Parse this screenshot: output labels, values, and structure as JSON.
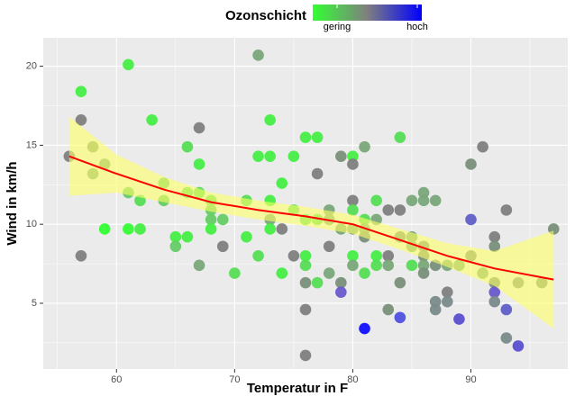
{
  "chart_data": {
    "type": "scatter",
    "x_label": "Temperatur in F",
    "y_label": "Wind in km/h",
    "xlim": [
      53.8,
      98.2
    ],
    "ylim": [
      0.84,
      21.8
    ],
    "xticks": [
      60,
      70,
      80,
      90
    ],
    "yticks": [
      5,
      10,
      15,
      20
    ],
    "grid": true,
    "legend": {
      "title": "Ozonschicht",
      "labels": [
        "gering",
        "hoch"
      ],
      "colors": [
        "#33ff33",
        "#7f7f7f",
        "#0000ff"
      ]
    },
    "series": [
      {
        "x": [
          56,
          57,
          57,
          57,
          58,
          58,
          59,
          59,
          61,
          61,
          61,
          62,
          62,
          63,
          64,
          64,
          65,
          65,
          66,
          66,
          66,
          67,
          67,
          67,
          67,
          68,
          68,
          68,
          68,
          69,
          69,
          70,
          71,
          71,
          72,
          72,
          72,
          73,
          73,
          73,
          73,
          73,
          74,
          74,
          74,
          75,
          75,
          75,
          76,
          76,
          76,
          76,
          76,
          76,
          76,
          77,
          77,
          77,
          77,
          78,
          78,
          78,
          78,
          79,
          79,
          79,
          79,
          80,
          80,
          80,
          80,
          80,
          80,
          80,
          81,
          81,
          81,
          81,
          81,
          81,
          82,
          82,
          82,
          82,
          83,
          83,
          83,
          83,
          84,
          84,
          84,
          84,
          84,
          85,
          85,
          85,
          85,
          86,
          86,
          86,
          86,
          86,
          86,
          87,
          87,
          87,
          87,
          88,
          88,
          88,
          89,
          89,
          90,
          90,
          90,
          91,
          91,
          92,
          92,
          92,
          92,
          92,
          93,
          93,
          93,
          94,
          94,
          96,
          97
        ],
        "values": [
          14.3,
          18.4,
          16.6,
          8.0,
          14.9,
          13.2,
          13.8,
          9.7,
          20.1,
          12.0,
          9.7,
          11.5,
          9.7,
          16.6,
          12.6,
          11.5,
          9.2,
          8.6,
          14.9,
          12.0,
          9.2,
          16.1,
          13.8,
          12.0,
          7.4,
          11.5,
          10.9,
          10.3,
          9.7,
          10.3,
          8.6,
          6.9,
          11.5,
          9.2,
          20.7,
          14.3,
          8.0,
          16.6,
          14.3,
          11.5,
          10.3,
          9.7,
          12.6,
          9.7,
          6.9,
          14.3,
          10.9,
          8.0,
          15.5,
          10.3,
          8.0,
          7.4,
          6.3,
          4.6,
          1.7,
          15.5,
          13.2,
          10.3,
          6.3,
          10.9,
          10.3,
          8.6,
          6.9,
          14.3,
          9.7,
          6.3,
          5.7,
          14.3,
          13.8,
          11.5,
          10.9,
          9.7,
          8.0,
          7.4,
          14.9,
          10.3,
          9.7,
          9.2,
          6.9,
          3.4,
          11.5,
          10.3,
          8.0,
          7.4,
          10.9,
          8.0,
          7.4,
          4.6,
          15.5,
          10.9,
          9.2,
          6.3,
          4.1,
          11.5,
          9.2,
          8.6,
          7.4,
          12.0,
          11.5,
          8.6,
          8.0,
          7.4,
          6.9,
          11.5,
          7.4,
          5.1,
          4.6,
          7.4,
          5.7,
          5.1,
          7.4,
          4.0,
          13.8,
          10.3,
          8.0,
          14.9,
          6.9,
          9.2,
          8.6,
          6.3,
          5.7,
          5.1,
          10.9,
          4.6,
          2.8,
          2.3,
          6.3,
          6.3,
          9.7
        ],
        "colors": [
          "#7f7f7f",
          "#44ee44",
          "#7f7f7f",
          "#7f7f7f",
          "#80a070",
          "#7aa87a",
          "#7aa87a",
          "#33ff33",
          "#44ee44",
          "#66cc66",
          "#33ff33",
          "#55dd55",
          "#44ee44",
          "#44ee44",
          "#66cc66",
          "#66cc66",
          "#44ee44",
          "#66cc66",
          "#55dd55",
          "#55dd55",
          "#44ee44",
          "#7f7f7f",
          "#44ee44",
          "#55dd55",
          "#7aa87a",
          "#55dd55",
          "#66cc66",
          "#66cc66",
          "#44ee44",
          "#66cc66",
          "#7f7f7f",
          "#55dd55",
          "#55dd55",
          "#44ee44",
          "#7aa87a",
          "#44ee44",
          "#55dd55",
          "#44ee44",
          "#44ee44",
          "#44ee44",
          "#7aa87a",
          "#44ee44",
          "#44ee44",
          "#7f7f7f",
          "#44ee44",
          "#44ee44",
          "#55dd55",
          "#7f7f7f",
          "#44ee44",
          "#55dd55",
          "#44ee44",
          "#55dd55",
          "#7a907a",
          "#7f7f7f",
          "#7f7f7f",
          "#44ee44",
          "#7f7f7f",
          "#55dd55",
          "#55dd55",
          "#7aa87a",
          "#7aa87a",
          "#7f7f7f",
          "#7aa87a",
          "#7a907a",
          "#7aa87a",
          "#7a907a",
          "#6a5acd",
          "#44ee44",
          "#7f7f7f",
          "#7f7f7f",
          "#55dd55",
          "#7aa87a",
          "#44ee44",
          "#7aa87a",
          "#7aa87a",
          "#55dd55",
          "#7aa87a",
          "#7a907a",
          "#55dd55",
          "#1010ff",
          "#55dd55",
          "#7aa87a",
          "#44ee44",
          "#55dd55",
          "#7f7f7f",
          "#7f7f7f",
          "#7aa87a",
          "#7a907a",
          "#55dd55",
          "#7f7f7f",
          "#7a907a",
          "#7a907a",
          "#5050e0",
          "#7aa87a",
          "#7aa87a",
          "#7aa87a",
          "#55dd55",
          "#7aa87a",
          "#7aa87a",
          "#7a907a",
          "#7a907a",
          "#7aa87a",
          "#7a907a",
          "#7aa87a",
          "#7a907a",
          "#7a8a8a",
          "#7a8a8a",
          "#7aa87a",
          "#7f7f7f",
          "#7a8a8a",
          "#7aa87a",
          "#5a4fd0",
          "#7a907a",
          "#6060c8",
          "#7a907a",
          "#7f7f7f",
          "#7aa87a",
          "#7f7f7f",
          "#7a907a",
          "#7a907a",
          "#6a5acd",
          "#7a8a8a",
          "#7f7f7f",
          "#6060c8",
          "#7a8a8a",
          "#5a4fd0",
          "#7a907a",
          "#7a907a",
          "#7a907a"
        ]
      }
    ],
    "smooth": {
      "x": [
        56,
        60,
        64,
        68,
        72,
        76,
        80,
        84,
        88,
        92,
        97
      ],
      "values": [
        14.3,
        13.2,
        12.2,
        11.4,
        10.9,
        10.5,
        10.0,
        9.0,
        8.0,
        7.2,
        6.5
      ],
      "lower": [
        11.8,
        12.0,
        11.4,
        10.8,
        10.3,
        9.9,
        9.4,
        8.4,
        7.3,
        6.1,
        3.4
      ],
      "upper": [
        16.8,
        14.4,
        13.0,
        12.0,
        11.5,
        11.1,
        10.6,
        9.7,
        8.8,
        8.3,
        9.6
      ],
      "color": "#ff0000",
      "band_color": "#ffff66"
    }
  }
}
